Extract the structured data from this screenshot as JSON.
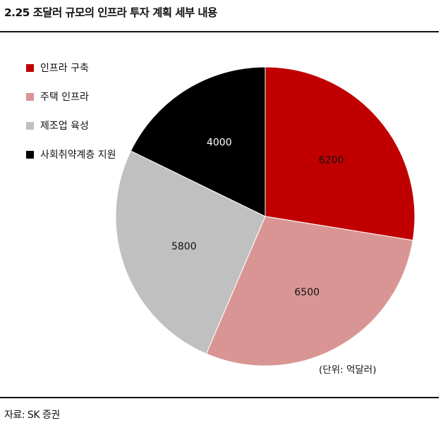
{
  "page": {
    "title": "2.25 조달러 규모의 인프라 투자 계획 세부 내용",
    "source": "자료: SK 증권",
    "unit_note": "(단위: 억달러)"
  },
  "chart_data": {
    "type": "pie",
    "title": "2.25 조달러 규모의 인프라 투자 계획 세부 내용",
    "unit": "억달러",
    "legend_position": "top-left",
    "start_angle_deg": 0,
    "direction": "clockwise",
    "slices": [
      {
        "label": "인프라 구축",
        "value": 6200,
        "value_label": "6200",
        "color": "#c00000",
        "text_color": "#111111"
      },
      {
        "label": "주택 인프라",
        "value": 6500,
        "value_label": "6500",
        "color": "#d99594",
        "text_color": "#111111"
      },
      {
        "label": "제조업 육성",
        "value": 5800,
        "value_label": "5800",
        "color": "#c0c0c0",
        "text_color": "#111111"
      },
      {
        "label": "사회취약계층 지원",
        "value": 4000,
        "value_label": "4000",
        "color": "#000000",
        "text_color": "#ffffff"
      }
    ]
  }
}
